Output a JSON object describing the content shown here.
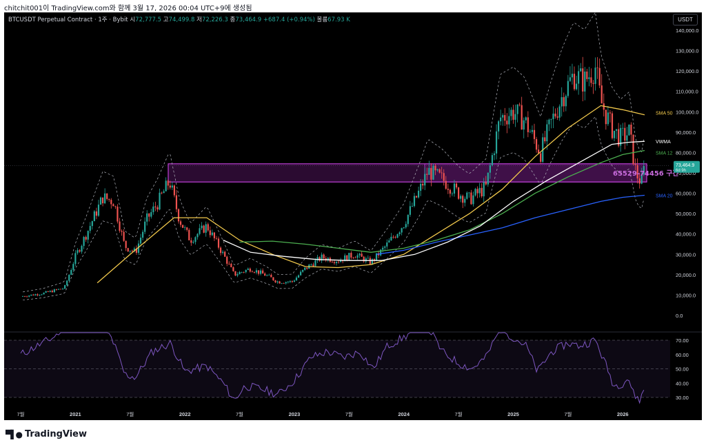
{
  "header": {
    "text": "chitchit001이 TradingView.com와 함께 3월 17, 2026 00:04 UTC+9에 생성됨"
  },
  "legend": {
    "symbol": "BTCUSDT Perpetual Contract · 1주 · Bybit",
    "o_label": "시",
    "o_val": "72,777.5",
    "h_label": "고",
    "h_val": "74,499.8",
    "l_label": "저",
    "l_val": "72,226.3",
    "c_label": "종",
    "c_val": "73,464.9",
    "chg": "+687.4 (+0.94%)",
    "vol_label": "볼륨",
    "vol_val": "67.93 K"
  },
  "currency_button": "USDT",
  "price_badge": {
    "value": "73,464.9",
    "countdown": "6d 9h"
  },
  "zone_label": "65529-74456 구간",
  "brand": "TradingView",
  "colors": {
    "up": "#26a69a",
    "down": "#ef5350",
    "sma50": "#f2c94c",
    "sma120": "#4caf50",
    "sma200": "#2962ff",
    "vwma": "#ffffff",
    "zone": "#9c27b0",
    "rsi": "#7e57c2"
  },
  "chart_data": {
    "type": "line",
    "x_ticks": [
      "7월",
      "2021",
      "7월",
      "2022",
      "7월",
      "2023",
      "7월",
      "2024",
      "7월",
      "2025",
      "7월",
      "2026"
    ],
    "y_ticks": [
      "140,000.0",
      "130,000.0",
      "120,000.0",
      "110,000.0",
      "100,000.0",
      "90,000.0",
      "80,000.0",
      "70,000.0",
      "60,000.0",
      "50,000.0",
      "40,000.0",
      "30,000.0",
      "20,000.0",
      "10,000.0",
      "0.0"
    ],
    "ylim": [
      0,
      140000
    ],
    "price_path": [
      [
        2020.5,
        9300
      ],
      [
        2020.7,
        10800
      ],
      [
        2020.9,
        13500
      ],
      [
        2021.0,
        29000
      ],
      [
        2021.1,
        40000
      ],
      [
        2021.25,
        58000
      ],
      [
        2021.35,
        56000
      ],
      [
        2021.45,
        34000
      ],
      [
        2021.55,
        31000
      ],
      [
        2021.65,
        47000
      ],
      [
        2021.75,
        55000
      ],
      [
        2021.86,
        66000
      ],
      [
        2021.95,
        47000
      ],
      [
        2022.05,
        37000
      ],
      [
        2022.2,
        44000
      ],
      [
        2022.35,
        30000
      ],
      [
        2022.45,
        20000
      ],
      [
        2022.6,
        23000
      ],
      [
        2022.75,
        19500
      ],
      [
        2022.85,
        16500
      ],
      [
        2022.98,
        16600
      ],
      [
        2023.1,
        23000
      ],
      [
        2023.25,
        28500
      ],
      [
        2023.4,
        27000
      ],
      [
        2023.55,
        30000
      ],
      [
        2023.7,
        26000
      ],
      [
        2023.85,
        35000
      ],
      [
        2024.0,
        45000
      ],
      [
        2024.15,
        62000
      ],
      [
        2024.22,
        71000
      ],
      [
        2024.35,
        67000
      ],
      [
        2024.5,
        60000
      ],
      [
        2024.6,
        57000
      ],
      [
        2024.75,
        63000
      ],
      [
        2024.88,
        97000
      ],
      [
        2025.0,
        100000
      ],
      [
        2025.1,
        96000
      ],
      [
        2025.25,
        80000
      ],
      [
        2025.35,
        95000
      ],
      [
        2025.45,
        108000
      ],
      [
        2025.55,
        118000
      ],
      [
        2025.65,
        115000
      ],
      [
        2025.75,
        122000
      ],
      [
        2025.8,
        105000
      ],
      [
        2025.9,
        92000
      ],
      [
        2025.98,
        87000
      ],
      [
        2026.06,
        90000
      ],
      [
        2026.12,
        70000
      ],
      [
        2026.17,
        65000
      ],
      [
        2026.2,
        73465
      ]
    ],
    "series": [
      {
        "name": "SMA 50",
        "values": [
          [
            2021.2,
            16000
          ],
          [
            2021.5,
            30000
          ],
          [
            2021.9,
            48000
          ],
          [
            2022.2,
            48000
          ],
          [
            2022.5,
            37000
          ],
          [
            2022.8,
            30000
          ],
          [
            2023.1,
            24000
          ],
          [
            2023.4,
            23500
          ],
          [
            2023.7,
            25000
          ],
          [
            2024.0,
            30000
          ],
          [
            2024.3,
            40000
          ],
          [
            2024.6,
            50000
          ],
          [
            2024.9,
            62000
          ],
          [
            2025.2,
            78000
          ],
          [
            2025.5,
            92000
          ],
          [
            2025.8,
            103000
          ],
          [
            2026.0,
            101000
          ],
          [
            2026.2,
            98500
          ]
        ]
      },
      {
        "name": "SMA 120",
        "values": [
          [
            2022.5,
            36000
          ],
          [
            2022.8,
            36500
          ],
          [
            2023.1,
            35000
          ],
          [
            2023.4,
            33000
          ],
          [
            2023.7,
            31000
          ],
          [
            2024.0,
            33000
          ],
          [
            2024.3,
            37000
          ],
          [
            2024.6,
            42000
          ],
          [
            2024.9,
            50000
          ],
          [
            2025.2,
            60000
          ],
          [
            2025.5,
            68000
          ],
          [
            2025.8,
            75000
          ],
          [
            2026.0,
            79000
          ],
          [
            2026.2,
            81000
          ]
        ]
      },
      {
        "name": "SMA 200",
        "values": [
          [
            2023.75,
            30000
          ],
          [
            2024.0,
            32000
          ],
          [
            2024.3,
            36000
          ],
          [
            2024.6,
            39500
          ],
          [
            2024.9,
            43000
          ],
          [
            2025.2,
            48000
          ],
          [
            2025.5,
            52000
          ],
          [
            2025.8,
            56000
          ],
          [
            2026.0,
            58000
          ],
          [
            2026.2,
            59000
          ]
        ]
      },
      {
        "name": "VWMA",
        "values": [
          [
            2022.35,
            37000
          ],
          [
            2022.6,
            31000
          ],
          [
            2022.9,
            29000
          ],
          [
            2023.2,
            27500
          ],
          [
            2023.5,
            27000
          ],
          [
            2023.8,
            27000
          ],
          [
            2024.1,
            30000
          ],
          [
            2024.4,
            36000
          ],
          [
            2024.7,
            44000
          ],
          [
            2025.0,
            56000
          ],
          [
            2025.3,
            66000
          ],
          [
            2025.6,
            75000
          ],
          [
            2025.9,
            84000
          ],
          [
            2026.05,
            85000
          ],
          [
            2026.2,
            85500
          ]
        ]
      }
    ],
    "series_labels": [
      "SMA 50",
      "VWMA",
      "SMA 12",
      "SMA 20"
    ],
    "zone": {
      "low": 65529,
      "high": 74456
    },
    "rsi": {
      "y_ticks": [
        "70.00",
        "60.00",
        "50.00",
        "40.00",
        "30.00"
      ],
      "ylim": [
        25,
        75
      ],
      "values": [
        [
          2020.5,
          60
        ],
        [
          2020.8,
          72
        ],
        [
          2021.0,
          86
        ],
        [
          2021.2,
          90
        ],
        [
          2021.35,
          68
        ],
        [
          2021.45,
          46
        ],
        [
          2021.55,
          44
        ],
        [
          2021.7,
          62
        ],
        [
          2021.87,
          68
        ],
        [
          2022.0,
          48
        ],
        [
          2022.2,
          52
        ],
        [
          2022.35,
          40
        ],
        [
          2022.45,
          28
        ],
        [
          2022.55,
          38
        ],
        [
          2022.7,
          36
        ],
        [
          2022.85,
          32
        ],
        [
          2023.0,
          42
        ],
        [
          2023.15,
          58
        ],
        [
          2023.3,
          62
        ],
        [
          2023.45,
          58
        ],
        [
          2023.6,
          62
        ],
        [
          2023.72,
          50
        ],
        [
          2023.85,
          66
        ],
        [
          2024.0,
          72
        ],
        [
          2024.2,
          82
        ],
        [
          2024.35,
          62
        ],
        [
          2024.5,
          54
        ],
        [
          2024.62,
          50
        ],
        [
          2024.75,
          58
        ],
        [
          2024.88,
          78
        ],
        [
          2025.0,
          72
        ],
        [
          2025.12,
          66
        ],
        [
          2025.22,
          48
        ],
        [
          2025.35,
          62
        ],
        [
          2025.5,
          68
        ],
        [
          2025.6,
          66
        ],
        [
          2025.75,
          70
        ],
        [
          2025.85,
          52
        ],
        [
          2025.92,
          38
        ],
        [
          2026.0,
          40
        ],
        [
          2026.05,
          44
        ],
        [
          2026.1,
          32
        ],
        [
          2026.16,
          28
        ],
        [
          2026.2,
          37
        ]
      ]
    }
  }
}
